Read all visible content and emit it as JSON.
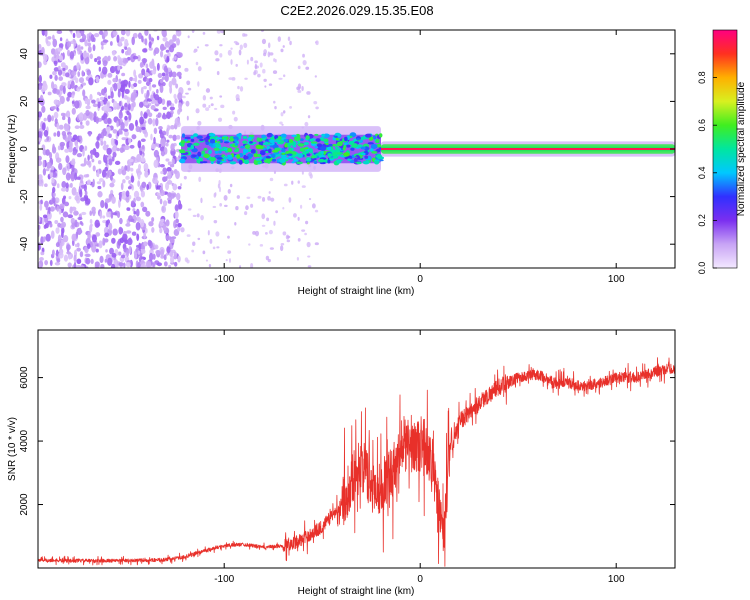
{
  "title": "C2E2.2026.029.15.35.E08",
  "colors": {
    "trace": "#e8302a",
    "background": "#ffffff",
    "axis": "#000000"
  },
  "chart_data": [
    {
      "type": "heatmap",
      "xlabel": "Height of straight line (km)",
      "ylabel": "Frequency (Hz)",
      "xlim": [
        -195,
        130
      ],
      "ylim": [
        -50,
        50
      ],
      "xticks": [
        -100,
        0,
        100
      ],
      "xtick_labels": [
        "-100",
        "0",
        "100"
      ],
      "yticks": [
        -40,
        -20,
        0,
        20,
        40
      ],
      "ytick_labels": [
        "-40",
        "-20",
        "0",
        "20",
        "40"
      ],
      "colorbar": {
        "label": "Normalized spectral amplitude",
        "range": [
          0,
          1
        ],
        "ticks": [
          0.0,
          0.2,
          0.4,
          0.6,
          0.8
        ],
        "tick_labels": [
          "0.0",
          "0.2",
          "0.4",
          "0.6",
          "0.8"
        ],
        "colormap": [
          "#f3e8ff",
          "#c8a4f5",
          "#7b2ff0",
          "#3030ff",
          "#00c8ff",
          "#00e6a0",
          "#40ee20",
          "#d8f020",
          "#ffb000",
          "#ff3020",
          "#ff0080"
        ]
      },
      "regions": [
        {
          "x": [
            -195,
            -122
          ],
          "freq_range": [
            -50,
            50
          ],
          "amplitude": 0.12,
          "description_kind": "broadband noise"
        },
        {
          "x": [
            -122,
            -20
          ],
          "freq_center": 0,
          "freq_halfwidth": 6,
          "amplitude": 0.3
        },
        {
          "x": [
            -20,
            130
          ],
          "freq_center": 0,
          "freq_halfwidth": 2,
          "amplitude": 0.95
        }
      ]
    },
    {
      "type": "line",
      "xlabel": "Height of straight line (km)",
      "ylabel": "SNR (10 * v/v)",
      "xlim": [
        -195,
        130
      ],
      "ylim": [
        0,
        7500
      ],
      "xticks": [
        -100,
        0,
        100
      ],
      "xtick_labels": [
        "-100",
        "0",
        "100"
      ],
      "yticks": [
        2000,
        4000,
        6000
      ],
      "ytick_labels": [
        "2000",
        "4000",
        "6000"
      ],
      "series": [
        {
          "name": "SNR",
          "x": [
            -195,
            -180,
            -160,
            -140,
            -130,
            -120,
            -110,
            -100,
            -90,
            -80,
            -70,
            -60,
            -50,
            -40,
            -35,
            -30,
            -25,
            -20,
            -15,
            -10,
            -5,
            0,
            5,
            10,
            12,
            15,
            20,
            30,
            40,
            50,
            60,
            70,
            75,
            80,
            90,
            100,
            110,
            120,
            130
          ],
          "values": [
            250,
            230,
            230,
            240,
            260,
            350,
            550,
            700,
            750,
            650,
            700,
            900,
            1300,
            2000,
            2800,
            3300,
            2600,
            2500,
            3000,
            3600,
            4000,
            3800,
            3500,
            1800,
            900,
            3600,
            4600,
            5200,
            5700,
            6000,
            6100,
            5800,
            5900,
            5700,
            5800,
            6000,
            6000,
            6200,
            6300
          ]
        }
      ]
    }
  ]
}
